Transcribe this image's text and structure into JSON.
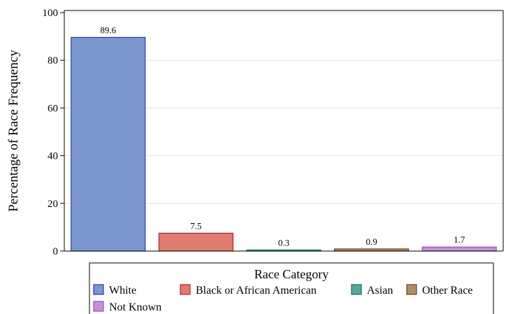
{
  "chart_data": {
    "type": "bar",
    "title": "",
    "xlabel": "",
    "ylabel": "Percentage of Race Frequency",
    "ylim": [
      0,
      100
    ],
    "yticks": [
      0,
      20,
      40,
      60,
      80,
      100
    ],
    "grid": true,
    "legend_title": "Race Category",
    "legend_position": "bottom",
    "categories": [
      "White",
      "Black or African American",
      "Asian",
      "Other Race",
      "Not Known"
    ],
    "values": [
      89.6,
      7.5,
      0.3,
      0.9,
      1.7
    ],
    "value_labels": [
      "89.6",
      "7.5",
      "0.3",
      "0.9",
      "1.7"
    ],
    "fill_colors": [
      "#7b97cf",
      "#e07b70",
      "#58a89a",
      "#ae8d6a",
      "#c48fd6"
    ],
    "edge_colors": [
      "#2a3aa8",
      "#b2242a",
      "#0d6f5f",
      "#6b4418",
      "#9a4cc4"
    ]
  }
}
